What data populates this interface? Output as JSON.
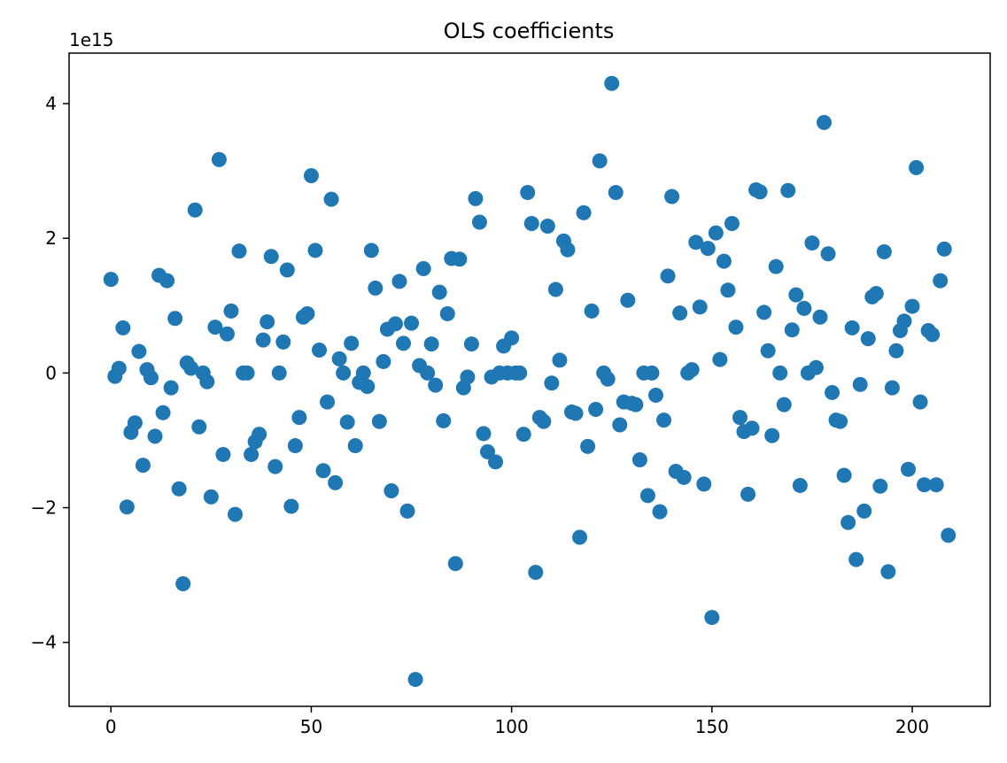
{
  "chart_data": {
    "type": "scatter",
    "title": "OLS  coefficients",
    "xlabel": "",
    "ylabel": "",
    "offset_text": "1e15",
    "y_scale_factor": 1000000000000000.0,
    "xlim": [
      -10.45,
      219.45
    ],
    "ylim": [
      -4.95,
      4.75
    ],
    "xticks": [
      0,
      50,
      100,
      150,
      200
    ],
    "yticks": [
      -4,
      -2,
      0,
      2,
      4
    ],
    "ytick_labels": [
      "−4",
      "−2",
      "0",
      "2",
      "4"
    ],
    "grid": false,
    "marker_color": "#1f77b4",
    "series": [
      {
        "values": [
          1.39,
          -0.05,
          0.07,
          0.67,
          -1.99,
          -0.88,
          -0.74,
          0.32,
          -1.37,
          0.05,
          -0.07,
          -0.94,
          1.45,
          -0.59,
          1.37,
          -0.22,
          0.81,
          -1.72,
          -3.13,
          0.15,
          0.07,
          2.42,
          -0.8,
          0.0,
          -0.13,
          -1.84,
          0.68,
          3.17,
          -1.21,
          0.58,
          0.92,
          -2.1,
          1.81,
          0.0,
          0.0,
          -1.21,
          -1.02,
          -0.91,
          0.49,
          0.76,
          1.73,
          -1.39,
          0.0,
          0.46,
          1.53,
          -1.98,
          -1.08,
          -0.66,
          0.83,
          0.88,
          2.93,
          1.82,
          0.34,
          -1.45,
          -0.43,
          2.58,
          -1.63,
          0.21,
          0.0,
          -0.73,
          0.44,
          -1.08,
          -0.14,
          0.0,
          -0.2,
          1.82,
          1.26,
          -0.72,
          0.17,
          0.65,
          -1.75,
          0.73,
          1.36,
          0.44,
          -2.05,
          0.74,
          -4.55,
          0.11,
          1.55,
          0.0,
          0.43,
          -0.18,
          1.2,
          -0.71,
          0.88,
          1.7,
          -2.83,
          1.69,
          -0.22,
          -0.06,
          0.43,
          2.59,
          2.24,
          -0.9,
          -1.17,
          -0.06,
          -1.32,
          0.0,
          0.4,
          0.0,
          0.52,
          0.0,
          0.0,
          -0.91,
          2.68,
          2.22,
          -2.96,
          -0.66,
          -0.72,
          2.18,
          -0.15,
          1.24,
          0.19,
          1.96,
          1.83,
          -0.58,
          -0.6,
          -2.44,
          2.38,
          -1.09,
          0.92,
          -0.54,
          3.15,
          0.0,
          -0.09,
          4.3,
          2.68,
          -0.77,
          -0.43,
          1.08,
          -0.45,
          -0.47,
          -1.29,
          0.0,
          -1.82,
          0.0,
          -0.33,
          -2.06,
          -0.7,
          1.44,
          2.62,
          -1.46,
          0.89,
          -1.55,
          0.0,
          0.05,
          1.94,
          0.98,
          -1.65,
          1.85,
          -3.63,
          2.08,
          0.2,
          1.66,
          1.23,
          2.22,
          0.68,
          -0.66,
          -0.87,
          -1.8,
          -0.82,
          2.72,
          2.69,
          0.9,
          0.33,
          -0.93,
          1.58,
          0.0,
          -0.47,
          2.71,
          0.64,
          1.16,
          -1.67,
          0.96,
          0.0,
          1.93,
          0.08,
          0.83,
          3.72,
          1.77,
          -0.29,
          -0.7,
          -0.72,
          -1.52,
          -2.22,
          0.67,
          -2.77,
          -0.17,
          -2.05,
          0.51,
          1.13,
          1.18,
          -1.68,
          1.8,
          -2.95,
          -0.22,
          0.33,
          0.63,
          0.77,
          -1.43,
          0.99,
          3.05,
          -0.43,
          -1.66,
          0.63,
          0.57,
          -1.66,
          1.37,
          1.84,
          -2.41
        ]
      }
    ]
  }
}
